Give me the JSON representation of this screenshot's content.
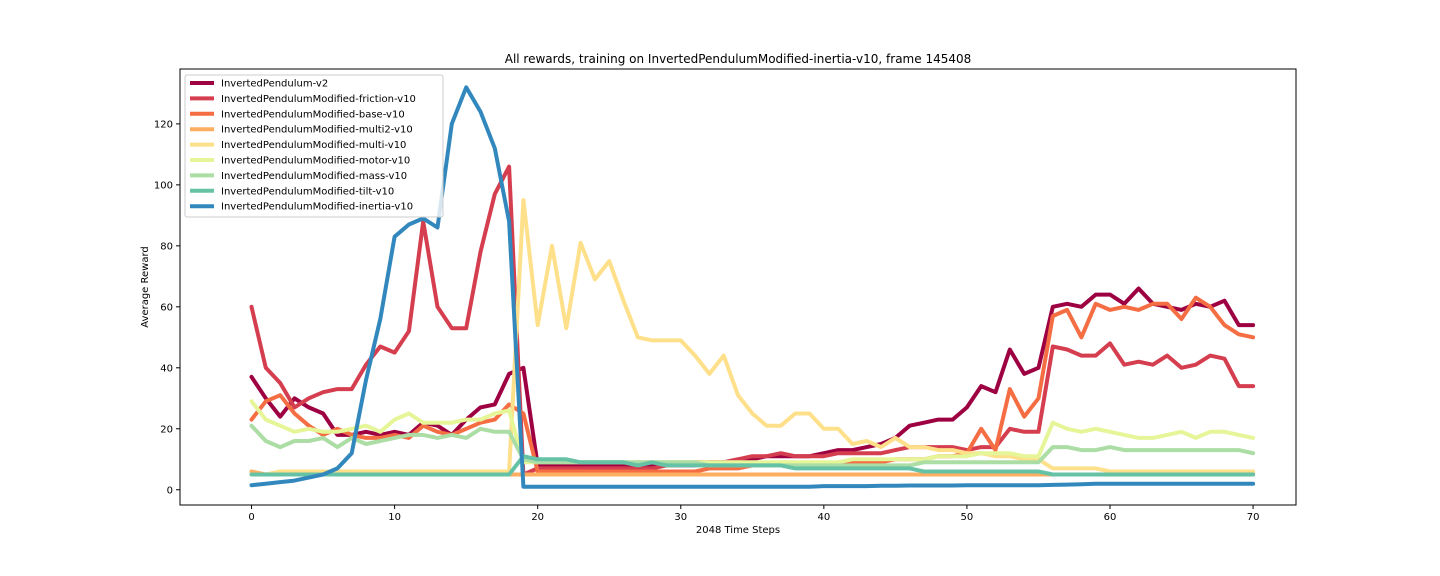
{
  "chart_data": {
    "type": "line",
    "title": "All rewards, training on InvertedPendulumModified-inertia-v10, frame 145408",
    "xlabel": "2048 Time Steps",
    "ylabel": "Average Reward",
    "xlim": [
      -5,
      73
    ],
    "ylim": [
      -5,
      138
    ],
    "xticks": [
      0,
      10,
      20,
      30,
      40,
      50,
      60,
      70
    ],
    "yticks": [
      0,
      20,
      40,
      60,
      80,
      100,
      120
    ],
    "grid": false,
    "legend_position": "upper-left",
    "x": [
      0,
      1,
      2,
      3,
      4,
      5,
      6,
      7,
      8,
      9,
      10,
      11,
      12,
      13,
      14,
      15,
      16,
      17,
      18,
      19,
      20,
      21,
      22,
      23,
      24,
      25,
      26,
      27,
      28,
      29,
      30,
      31,
      32,
      33,
      34,
      35,
      36,
      37,
      38,
      39,
      40,
      41,
      42,
      43,
      44,
      45,
      46,
      47,
      48,
      49,
      50,
      51,
      52,
      53,
      54,
      55,
      56,
      57,
      58,
      59,
      60,
      61,
      62,
      63,
      64,
      65,
      66,
      67,
      68,
      69,
      70
    ],
    "series": [
      {
        "name": "InvertedPendulum-v2",
        "color": "#9e0142",
        "values": [
          37,
          30,
          24,
          30,
          27,
          25,
          18,
          18,
          19,
          18,
          19,
          18,
          22,
          21,
          18,
          23,
          27,
          28,
          38,
          40,
          8,
          8,
          8,
          8,
          8,
          8,
          8,
          8,
          8,
          8,
          8,
          8,
          9,
          9,
          10,
          10,
          11,
          11,
          11,
          11,
          12,
          13,
          13,
          14,
          15,
          17,
          21,
          22,
          23,
          23,
          27,
          34,
          32,
          46,
          38,
          40,
          60,
          61,
          60,
          64,
          64,
          61,
          66,
          61,
          60,
          59,
          61,
          60,
          62,
          54,
          54
        ]
      },
      {
        "name": "InvertedPendulumModified-friction-v10",
        "color": "#d53e4f",
        "values": [
          60,
          40,
          35,
          27,
          30,
          32,
          33,
          33,
          41,
          47,
          45,
          52,
          88,
          60,
          53,
          53,
          78,
          97,
          106,
          5,
          7,
          7,
          7,
          7,
          7,
          7,
          7,
          7,
          7,
          8,
          8,
          9,
          9,
          9,
          10,
          11,
          11,
          12,
          11,
          11,
          11,
          12,
          12,
          12,
          12,
          13,
          14,
          14,
          14,
          14,
          13,
          14,
          14,
          20,
          19,
          19,
          47,
          46,
          44,
          44,
          48,
          41,
          42,
          41,
          44,
          40,
          41,
          44,
          43,
          34,
          34
        ]
      },
      {
        "name": "InvertedPendulumModified-base-v10",
        "color": "#f46d43",
        "values": [
          23,
          29,
          31,
          25,
          21,
          18,
          20,
          18,
          17,
          17,
          18,
          17,
          21,
          19,
          18,
          20,
          22,
          23,
          28,
          25,
          6,
          6,
          6,
          6,
          6,
          6,
          6,
          6,
          6,
          6,
          6,
          6,
          7,
          7,
          7,
          8,
          8,
          8,
          8,
          8,
          8,
          9,
          9,
          9,
          9,
          10,
          10,
          10,
          11,
          11,
          12,
          20,
          13,
          33,
          24,
          30,
          57,
          59,
          50,
          61,
          59,
          60,
          59,
          61,
          61,
          56,
          63,
          60,
          54,
          51,
          50
        ]
      },
      {
        "name": "InvertedPendulumModified-multi2-v10",
        "color": "#fdae61",
        "values": [
          6,
          5,
          5,
          5,
          5,
          5,
          5,
          5,
          5,
          5,
          5,
          5,
          5,
          5,
          5,
          5,
          5,
          5,
          5,
          5,
          5,
          5,
          5,
          5,
          5,
          5,
          5,
          5,
          5,
          5,
          5,
          5,
          5,
          5,
          5,
          5,
          5,
          5,
          5,
          5,
          5,
          5,
          5,
          5,
          5,
          5,
          5,
          5,
          5,
          5,
          5,
          5,
          5,
          5,
          5,
          5,
          5,
          5,
          5,
          5,
          5,
          5,
          5,
          5,
          5,
          5,
          5,
          5,
          5,
          5,
          5
        ]
      },
      {
        "name": "InvertedPendulumModified-multi-v10",
        "color": "#fee08b",
        "values": [
          5,
          5,
          6,
          6,
          6,
          6,
          6,
          6,
          6,
          6,
          6,
          6,
          6,
          6,
          6,
          6,
          6,
          6,
          6,
          95,
          54,
          80,
          53,
          81,
          69,
          75,
          62,
          50,
          49,
          49,
          49,
          44,
          38,
          44,
          31,
          25,
          21,
          21,
          25,
          25,
          20,
          20,
          15,
          16,
          14,
          17,
          14,
          14,
          13,
          13,
          12,
          12,
          11,
          11,
          10,
          10,
          7,
          7,
          7,
          7,
          6,
          6,
          6,
          6,
          6,
          6,
          6,
          6,
          6,
          6,
          6
        ]
      },
      {
        "name": "InvertedPendulumModified-motor-v10",
        "color": "#e6f598",
        "values": [
          29,
          23,
          21,
          19,
          20,
          19,
          19,
          20,
          21,
          19,
          23,
          25,
          22,
          22,
          22,
          23,
          23,
          25,
          26,
          9,
          9,
          9,
          9,
          9,
          9,
          9,
          9,
          9,
          9,
          9,
          9,
          9,
          9,
          9,
          9,
          9,
          9,
          9,
          9,
          9,
          9,
          9,
          10,
          10,
          10,
          10,
          10,
          10,
          11,
          11,
          11,
          12,
          12,
          12,
          11,
          11,
          22,
          20,
          19,
          20,
          19,
          18,
          17,
          17,
          18,
          19,
          17,
          19,
          19,
          18,
          17
        ]
      },
      {
        "name": "InvertedPendulumModified-mass-v10",
        "color": "#abdda4",
        "values": [
          21,
          16,
          14,
          16,
          16,
          17,
          14,
          17,
          15,
          16,
          17,
          18,
          18,
          17,
          18,
          17,
          20,
          19,
          19,
          10,
          9,
          9,
          9,
          9,
          9,
          9,
          9,
          9,
          9,
          9,
          9,
          9,
          8,
          8,
          8,
          8,
          8,
          8,
          8,
          8,
          8,
          8,
          8,
          8,
          8,
          8,
          8,
          9,
          9,
          9,
          9,
          9,
          9,
          9,
          9,
          9,
          14,
          14,
          13,
          13,
          14,
          13,
          13,
          13,
          13,
          13,
          13,
          13,
          13,
          13,
          12
        ]
      },
      {
        "name": "InvertedPendulumModified-tilt-v10",
        "color": "#66c2a5",
        "values": [
          5,
          5,
          5,
          5,
          5,
          5,
          5,
          5,
          5,
          5,
          5,
          5,
          5,
          5,
          5,
          5,
          5,
          5,
          5,
          11,
          10,
          10,
          10,
          9,
          9,
          9,
          9,
          8,
          9,
          8,
          8,
          8,
          8,
          8,
          8,
          8,
          8,
          8,
          7,
          7,
          7,
          7,
          7,
          7,
          7,
          7,
          7,
          6,
          6,
          6,
          6,
          6,
          6,
          6,
          6,
          6,
          5,
          5,
          5,
          5,
          5,
          5,
          5,
          5,
          5,
          5,
          5,
          5,
          5,
          5,
          5
        ]
      },
      {
        "name": "InvertedPendulumModified-inertia-v10",
        "color": "#3288bd",
        "values": [
          1.5,
          2,
          2.5,
          3,
          4,
          5,
          7,
          12,
          36,
          56,
          83,
          87,
          89,
          86,
          120,
          132,
          124,
          112,
          88,
          1,
          1,
          1,
          1,
          1,
          1,
          1,
          1,
          1,
          1,
          1,
          1,
          1,
          1,
          1,
          1,
          1,
          1,
          1,
          1,
          1,
          1.2,
          1.2,
          1.2,
          1.2,
          1.3,
          1.3,
          1.4,
          1.4,
          1.4,
          1.4,
          1.5,
          1.5,
          1.5,
          1.5,
          1.5,
          1.5,
          1.6,
          1.7,
          1.8,
          2,
          2,
          2,
          2,
          2,
          2,
          2,
          2,
          2,
          2,
          2,
          2
        ]
      }
    ]
  }
}
